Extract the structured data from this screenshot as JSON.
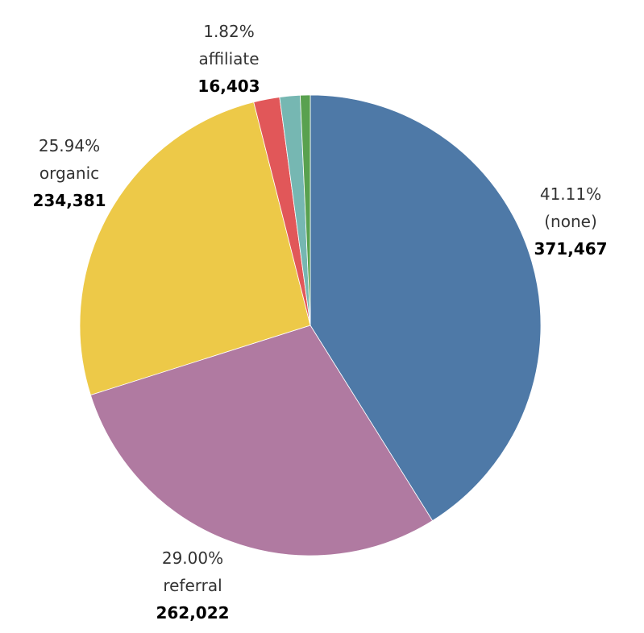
{
  "chart_data": {
    "type": "pie",
    "slices": [
      {
        "category": "(none)",
        "percent_label": "41.11%",
        "percent": 41.11,
        "value": 371467,
        "value_label": "371,467",
        "color": "#4e79a7"
      },
      {
        "category": "referral",
        "percent_label": "29.00%",
        "percent": 29.0,
        "value": 262022,
        "value_label": "262,022",
        "color": "#b07aa1"
      },
      {
        "category": "organic",
        "percent_label": "25.94%",
        "percent": 25.94,
        "value": 234381,
        "value_label": "234,381",
        "color": "#edc948"
      },
      {
        "category": "affiliate",
        "percent_label": "1.82%",
        "percent": 1.82,
        "value": 16403,
        "value_label": "16,403",
        "color": "#e15759"
      },
      {
        "category": "",
        "percent_label": "",
        "percent": 1.43,
        "value": null,
        "value_label": "",
        "color": "#76b7b2"
      },
      {
        "category": "",
        "percent_label": "",
        "percent": 0.7,
        "value": null,
        "value_label": "",
        "color": "#59a14f"
      }
    ],
    "start_angle_deg": 0,
    "direction": "clockwise"
  }
}
